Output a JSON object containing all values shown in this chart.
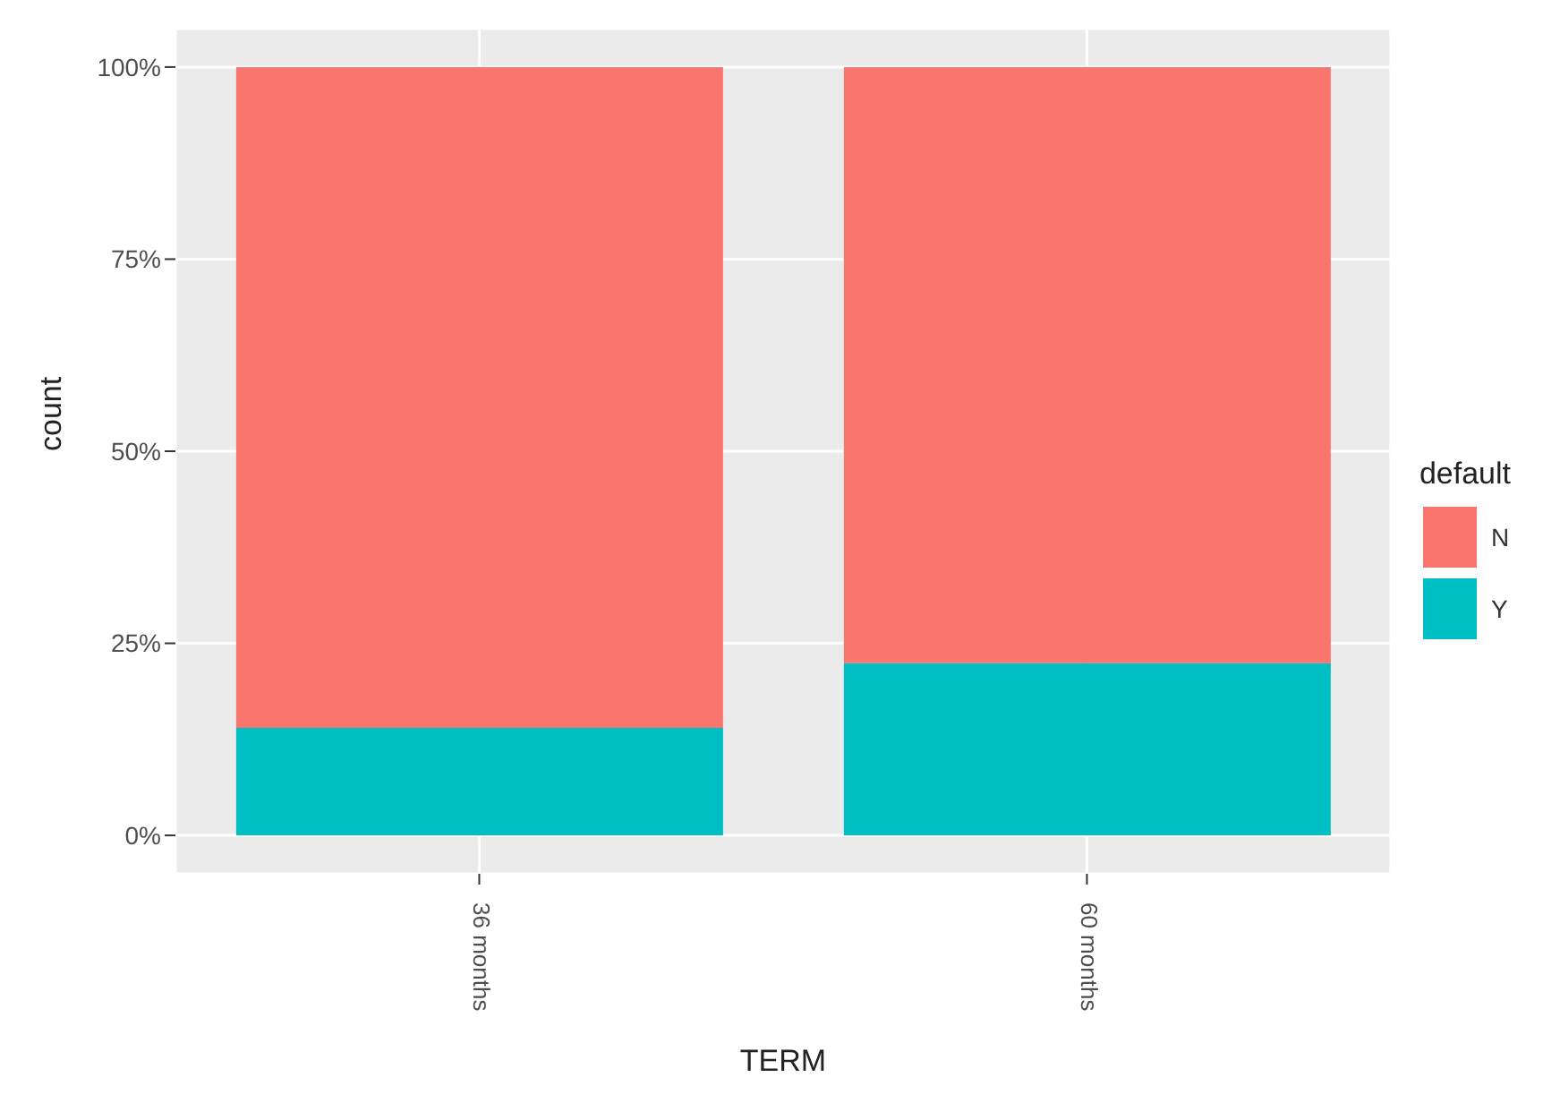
{
  "chart_data": {
    "type": "bar",
    "xlabel": "TERM",
    "ylabel": "count",
    "legend_title": "default",
    "categories": [
      "36 months",
      "60 months"
    ],
    "series": [
      {
        "name": "Y",
        "color": "#00bfc4",
        "values": [
          14,
          22.4
        ]
      },
      {
        "name": "N",
        "color": "#f8766d",
        "values": [
          86,
          77.6
        ]
      }
    ],
    "stacked": true,
    "ylim": [
      -5,
      105
    ],
    "yticks": [
      {
        "value": 0,
        "label": "0%"
      },
      {
        "value": 25,
        "label": "25%"
      },
      {
        "value": 50,
        "label": "50%"
      },
      {
        "value": 75,
        "label": "75%"
      },
      {
        "value": 100,
        "label": "100%"
      }
    ],
    "grid": true,
    "legend": "right"
  }
}
